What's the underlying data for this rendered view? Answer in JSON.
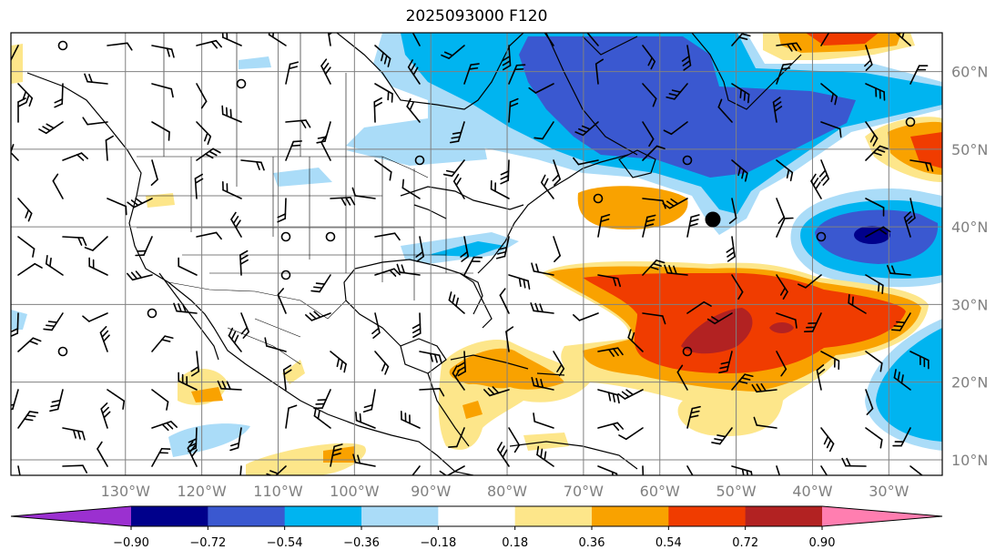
{
  "title": "2025093000 F120",
  "map": {
    "lon_range": [
      -145,
      -23
    ],
    "lat_range": [
      8,
      65
    ],
    "gridlines": true,
    "lon_labels": [
      "130°W",
      "120°W",
      "110°W",
      "100°W",
      "90°W",
      "80°W",
      "70°W",
      "60°W",
      "50°W",
      "40°W",
      "30°W"
    ],
    "lat_labels": [
      "60°N",
      "50°N",
      "40°N",
      "30°N",
      "20°N",
      "10°N"
    ],
    "label_color": "#808080",
    "grid_color": "#808080"
  },
  "colorbar": {
    "levels": [
      "−0.90",
      "−0.72",
      "−0.54",
      "−0.36",
      "−0.18",
      "0.18",
      "0.36",
      "0.54",
      "0.72",
      "0.90"
    ],
    "colors": [
      "#9b30d0",
      "#00008b",
      "#3a58d0",
      "#00b4f0",
      "#aadcf8",
      "#ffffff",
      "#fde68a",
      "#f9a200",
      "#f03c00",
      "#b22222",
      "#ff7eb0"
    ],
    "extend": "both"
  },
  "features": {
    "marker": "large black dot near 41°N 50°W",
    "fill_colors": {
      "neg_light": "#aadcf8",
      "neg_mid": "#00b4f0",
      "neg_dark": "#3a58d0",
      "neg_deep": "#00008b",
      "pos_light": "#fde68a",
      "pos_mid": "#f9a200",
      "pos_high": "#f03c00",
      "pos_peak": "#b22222"
    }
  }
}
